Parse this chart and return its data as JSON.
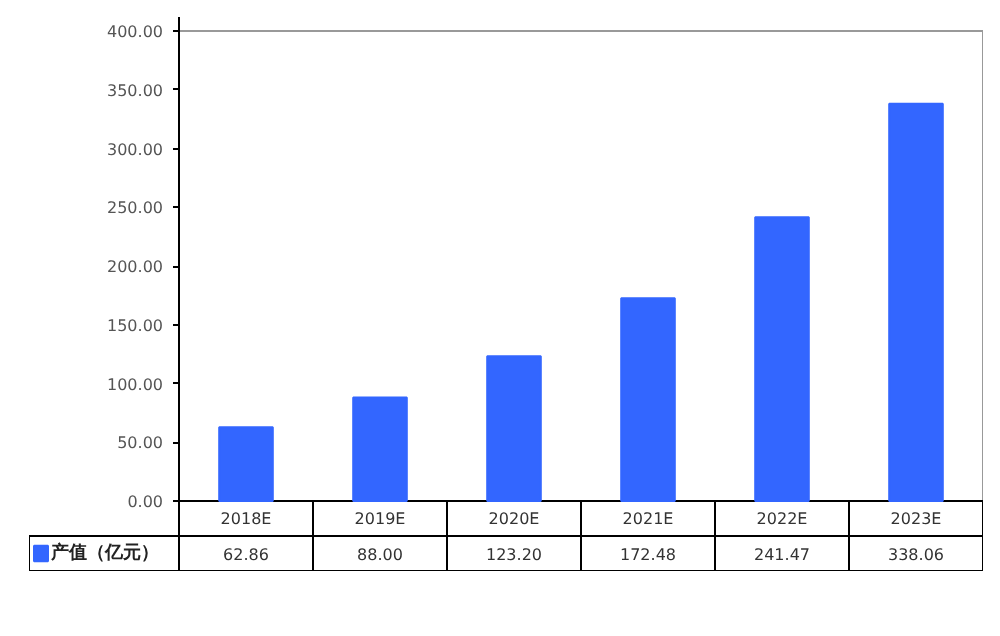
{
  "chart_data": {
    "type": "bar",
    "categories": [
      "2018E",
      "2019E",
      "2020E",
      "2021E",
      "2022E",
      "2023E"
    ],
    "series": [
      {
        "name": "产值（亿元）",
        "color": "#3366ff",
        "values": [
          62.86,
          88.0,
          123.2,
          172.48,
          241.47,
          338.06
        ],
        "value_labels": [
          "62.86",
          "88.00",
          "123.20",
          "172.48",
          "241.47",
          "338.06"
        ]
      }
    ],
    "ylim": [
      0,
      400
    ],
    "yticks": [
      {
        "value": 0,
        "label": "0.00"
      },
      {
        "value": 50,
        "label": "50.00"
      },
      {
        "value": 100,
        "label": "100.00"
      },
      {
        "value": 150,
        "label": "150.00"
      },
      {
        "value": 200,
        "label": "200.00"
      },
      {
        "value": 250,
        "label": "250.00"
      },
      {
        "value": 300,
        "label": "300.00"
      },
      {
        "value": 350,
        "label": "350.00"
      },
      {
        "value": 400,
        "label": "400.00"
      }
    ],
    "grid": false,
    "legend": "bottom left"
  }
}
